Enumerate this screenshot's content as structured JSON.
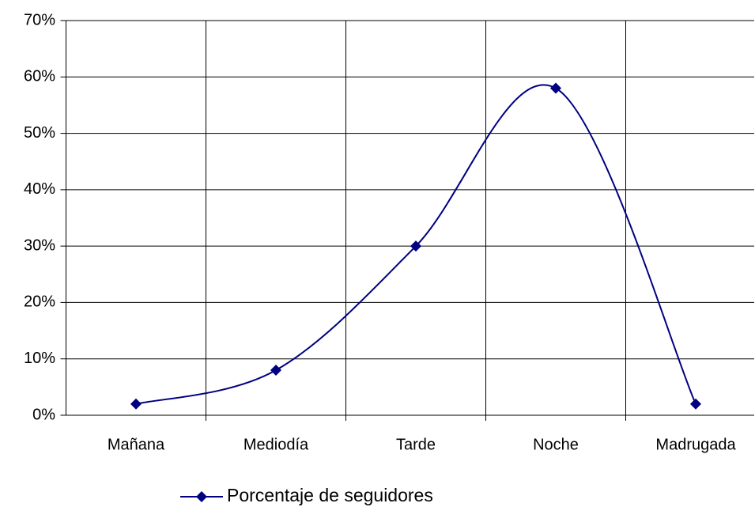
{
  "chart_data": {
    "type": "line",
    "categories": [
      "Mañana",
      "Mediodía",
      "Tarde",
      "Noche",
      "Madrugada"
    ],
    "series": [
      {
        "name": "Porcentaje de seguidores",
        "color": "#000080",
        "values": [
          2,
          8,
          30,
          58,
          2
        ]
      }
    ],
    "ylim": [
      0,
      70
    ],
    "yticks": [
      {
        "value": 0,
        "label": "0%"
      },
      {
        "value": 10,
        "label": "10%"
      },
      {
        "value": 20,
        "label": "20%"
      },
      {
        "value": 30,
        "label": "30%"
      },
      {
        "value": 40,
        "label": "40%"
      },
      {
        "value": 50,
        "label": "50%"
      },
      {
        "value": 60,
        "label": "60%"
      },
      {
        "value": 70,
        "label": "70%"
      }
    ],
    "grid": true,
    "smooth": true,
    "legend": "bottom"
  }
}
